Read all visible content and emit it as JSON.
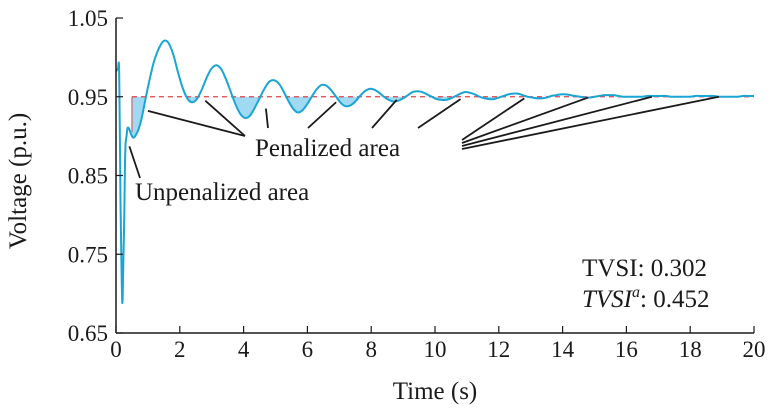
{
  "chart_data": {
    "type": "line",
    "xlabel": "Time (s)",
    "ylabel": "Voltage (p.u.)",
    "xlim": [
      0,
      20
    ],
    "ylim": [
      0.65,
      1.05
    ],
    "xticks": [
      "0",
      "2",
      "4",
      "6",
      "8",
      "10",
      "12",
      "14",
      "16",
      "18",
      "20"
    ],
    "yticks": [
      "0.65",
      "0.75",
      "0.85",
      "0.95",
      "1.05"
    ],
    "threshold": 0.95,
    "series": [
      {
        "x": [
          0.0,
          0.06,
          0.1,
          0.14,
          0.17,
          0.2,
          0.23,
          0.26,
          0.28,
          0.3,
          0.33,
          0.36,
          0.4,
          0.45,
          0.5,
          0.55,
          0.6,
          0.7,
          0.8,
          0.9,
          1.0,
          1.1,
          1.2,
          1.35,
          1.5,
          1.65,
          1.8,
          1.95,
          2.1,
          2.25,
          2.4,
          2.55,
          2.7,
          2.85,
          3.0,
          3.15,
          3.3,
          3.45,
          3.6,
          3.75,
          3.9,
          4.05,
          4.2,
          4.35,
          4.5,
          4.65,
          4.8,
          4.95,
          5.1,
          5.25,
          5.4,
          5.55,
          5.7,
          5.85,
          6.0,
          6.15,
          6.3,
          6.45,
          6.6,
          6.75,
          6.9,
          7.05,
          7.2,
          7.35,
          7.5,
          7.65,
          7.8,
          7.95,
          8.1,
          8.25,
          8.4,
          8.55,
          8.7,
          8.85,
          9.0,
          9.15,
          9.3,
          9.45,
          9.6,
          9.75,
          9.9,
          10.05,
          10.2,
          10.35,
          10.5,
          10.65,
          10.8,
          10.95,
          11.1,
          11.25,
          11.4,
          11.55,
          11.7,
          11.85,
          12.0,
          12.15,
          12.3,
          12.45,
          12.6,
          12.75,
          12.9,
          13.05,
          13.2,
          13.35,
          13.5,
          13.65,
          13.8,
          13.95,
          14.1,
          14.25,
          14.4,
          14.55,
          14.7,
          14.85,
          15.0,
          15.15,
          15.3,
          15.45,
          15.6,
          15.75,
          15.9,
          16.05,
          16.2,
          16.35,
          16.5,
          16.65,
          16.8,
          16.95,
          17.1,
          17.25,
          17.4,
          17.55,
          17.7,
          17.85,
          18.0,
          18.15,
          18.3,
          18.45,
          18.6,
          18.75,
          18.9,
          19.05,
          19.2,
          19.35,
          19.5,
          19.65,
          19.8,
          20.0
        ],
        "values": [
          0.982,
          0.985,
          0.98,
          0.82,
          0.74,
          0.688,
          0.74,
          0.8,
          0.86,
          0.89,
          0.9,
          0.91,
          0.91,
          0.905,
          0.9,
          0.898,
          0.9,
          0.908,
          0.922,
          0.942,
          0.962,
          0.98,
          0.996,
          1.012,
          1.021,
          1.018,
          1.003,
          0.98,
          0.96,
          0.947,
          0.943,
          0.948,
          0.96,
          0.975,
          0.986,
          0.99,
          0.985,
          0.972,
          0.956,
          0.94,
          0.928,
          0.923,
          0.926,
          0.936,
          0.948,
          0.96,
          0.969,
          0.971,
          0.967,
          0.957,
          0.945,
          0.935,
          0.93,
          0.933,
          0.941,
          0.951,
          0.96,
          0.965,
          0.964,
          0.958,
          0.95,
          0.942,
          0.938,
          0.939,
          0.944,
          0.951,
          0.957,
          0.96,
          0.959,
          0.955,
          0.95,
          0.946,
          0.944,
          0.945,
          0.948,
          0.952,
          0.956,
          0.957,
          0.956,
          0.953,
          0.95,
          0.947,
          0.946,
          0.946,
          0.948,
          0.951,
          0.954,
          0.956,
          0.955,
          0.953,
          0.95,
          0.948,
          0.947,
          0.947,
          0.949,
          0.951,
          0.953,
          0.954,
          0.954,
          0.952,
          0.95,
          0.949,
          0.948,
          0.948,
          0.949,
          0.951,
          0.952,
          0.953,
          0.953,
          0.952,
          0.951,
          0.95,
          0.949,
          0.949,
          0.95,
          0.951,
          0.952,
          0.952,
          0.952,
          0.951,
          0.95,
          0.95,
          0.95,
          0.95,
          0.95,
          0.951,
          0.951,
          0.951,
          0.951,
          0.951,
          0.95,
          0.95,
          0.95,
          0.95,
          0.95,
          0.951,
          0.951,
          0.951,
          0.951,
          0.951,
          0.95,
          0.95,
          0.95,
          0.95,
          0.95,
          0.951,
          0.951,
          0.951
        ]
      }
    ],
    "annotations": {
      "penalized": "Penalized area",
      "unpenalized": "Unpenalized area",
      "tvsi_label": "TVSI",
      "tvsi_value": ": 0.302",
      "tvsia_label": "TVSI",
      "tvsia_sup": "a",
      "tvsia_value": ": 0.452"
    },
    "colors": {
      "line": "#1aa5d4",
      "fill": "#8fd3f0",
      "threshold": "#e0404a",
      "text": "#1a1a1a"
    }
  }
}
